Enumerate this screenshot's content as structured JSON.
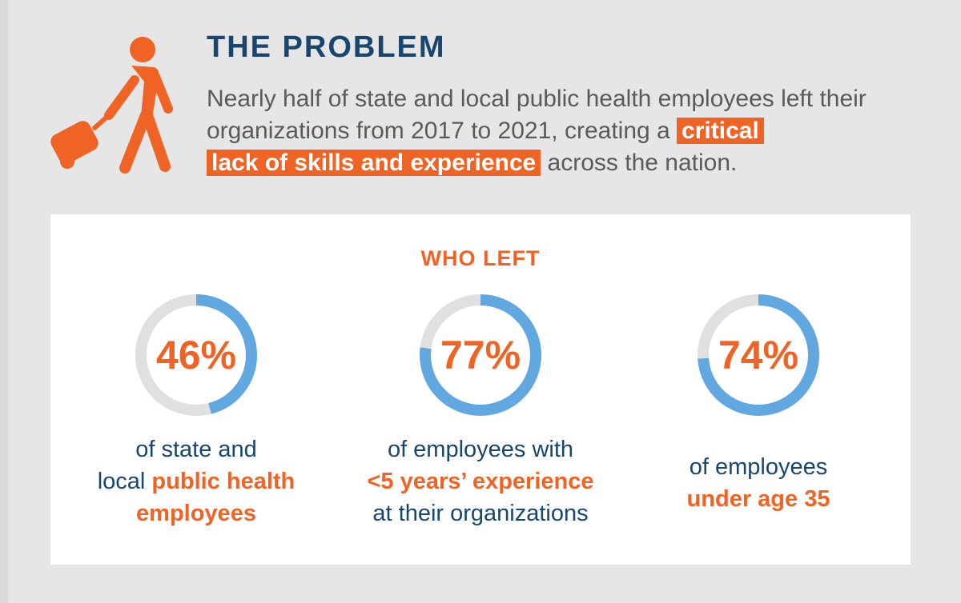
{
  "header": {
    "title": "THE PROBLEM",
    "intro_plain": "Nearly half of state and local public health employees left their organizations from 2017 to 2021, creating a ",
    "intro_highlight_1": "critical",
    "intro_highlight_2": "lack of skills and experience",
    "intro_end": " across the nation.",
    "icon": "person-with-rolling-suitcase-icon"
  },
  "colors": {
    "navy": "#18466e",
    "orange": "#ef6325",
    "ring_track": "#e0e0e0",
    "ring_fill": "#62a8e0",
    "panel_bg": "#e6e6e7"
  },
  "chart_data": {
    "type": "donut",
    "title": "WHO LEFT",
    "series": [
      {
        "value": 46,
        "label": "46%",
        "desc_lines": [
          {
            "text": "of state and",
            "strong": false
          },
          {
            "text": "local ",
            "strong": false,
            "strong_text": "public health"
          },
          {
            "text": "employees",
            "strong": true
          }
        ]
      },
      {
        "value": 77,
        "label": "77%",
        "desc_lines": [
          {
            "text": "of employees with",
            "strong": false
          },
          {
            "text": "<5 years’ experience",
            "strong": true
          },
          {
            "text": "at their organizations",
            "strong": false
          }
        ]
      },
      {
        "value": 74,
        "label": "74%",
        "desc_lines": [
          {
            "text": "of employees",
            "strong": false
          },
          {
            "text": "under age 35",
            "strong": true
          }
        ]
      }
    ]
  }
}
